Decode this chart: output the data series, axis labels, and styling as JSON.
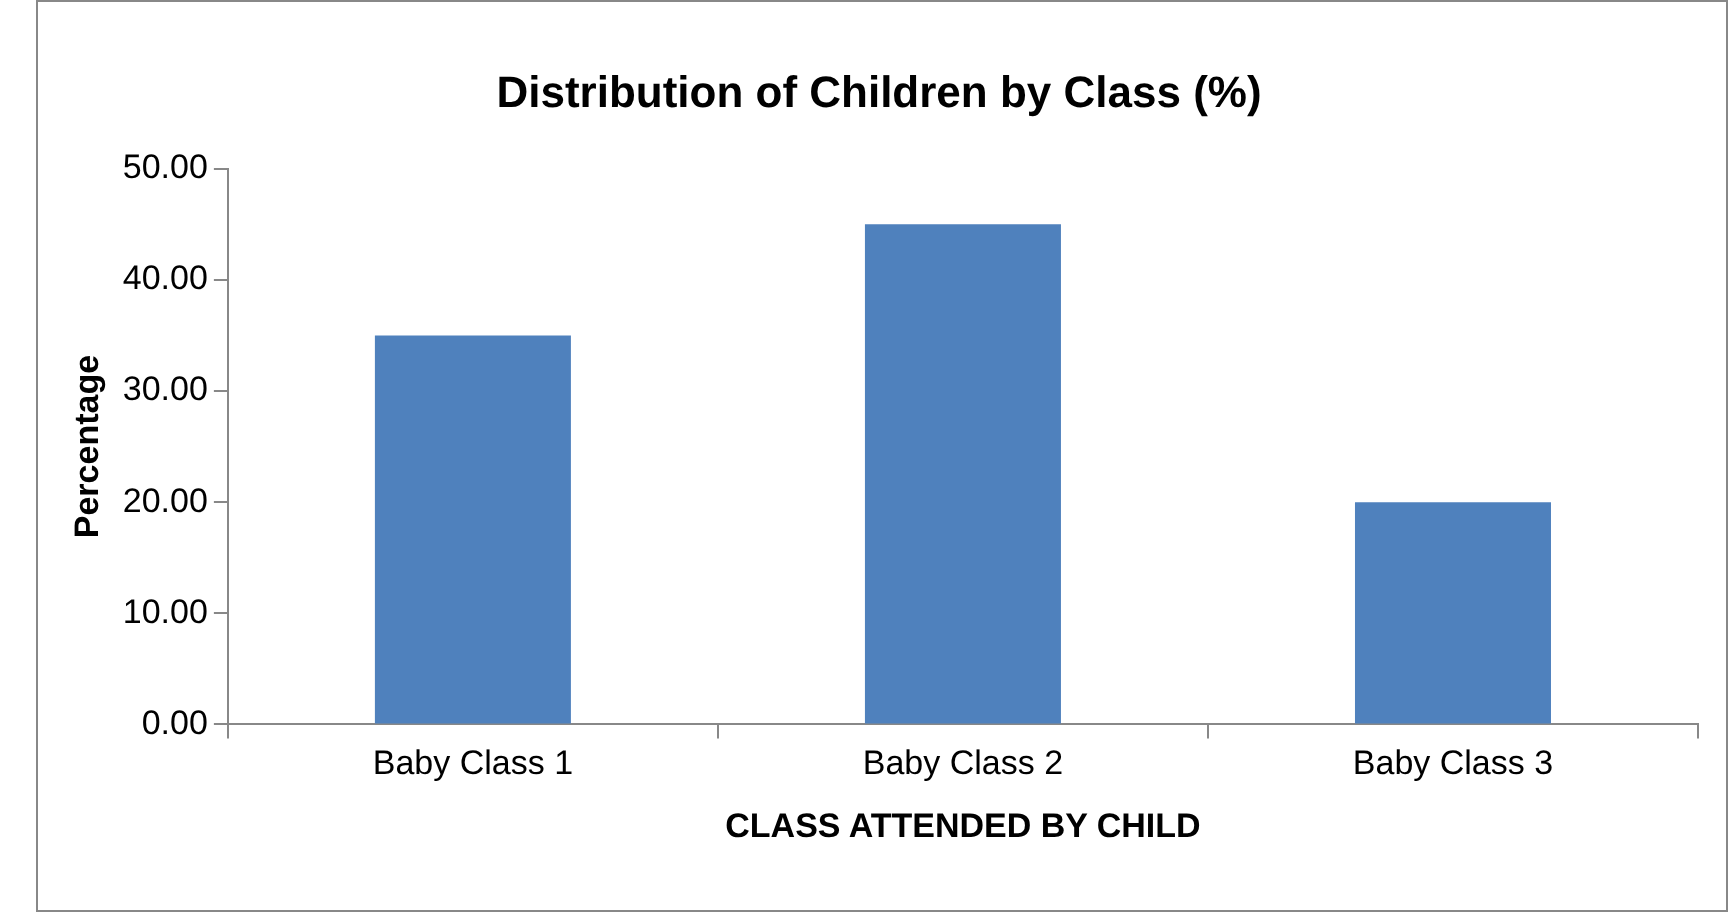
{
  "chart_data": {
    "type": "bar",
    "title": "Distribution of Children by Class (%)",
    "xlabel": "CLASS ATTENDED BY CHILD",
    "ylabel": "Percentage",
    "categories": [
      "Baby Class 1",
      "Baby Class 2",
      "Baby Class 3"
    ],
    "values": [
      35,
      45,
      20
    ],
    "color": "#4f81bd",
    "ylim": [
      0,
      50
    ],
    "yticks": [
      {
        "value": 0,
        "label": "0.00"
      },
      {
        "value": 10,
        "label": "10.00"
      },
      {
        "value": 20,
        "label": "20.00"
      },
      {
        "value": 30,
        "label": "30.00"
      },
      {
        "value": 40,
        "label": "40.00"
      },
      {
        "value": 50,
        "label": "50.00"
      }
    ],
    "grid": false,
    "legend": false
  }
}
